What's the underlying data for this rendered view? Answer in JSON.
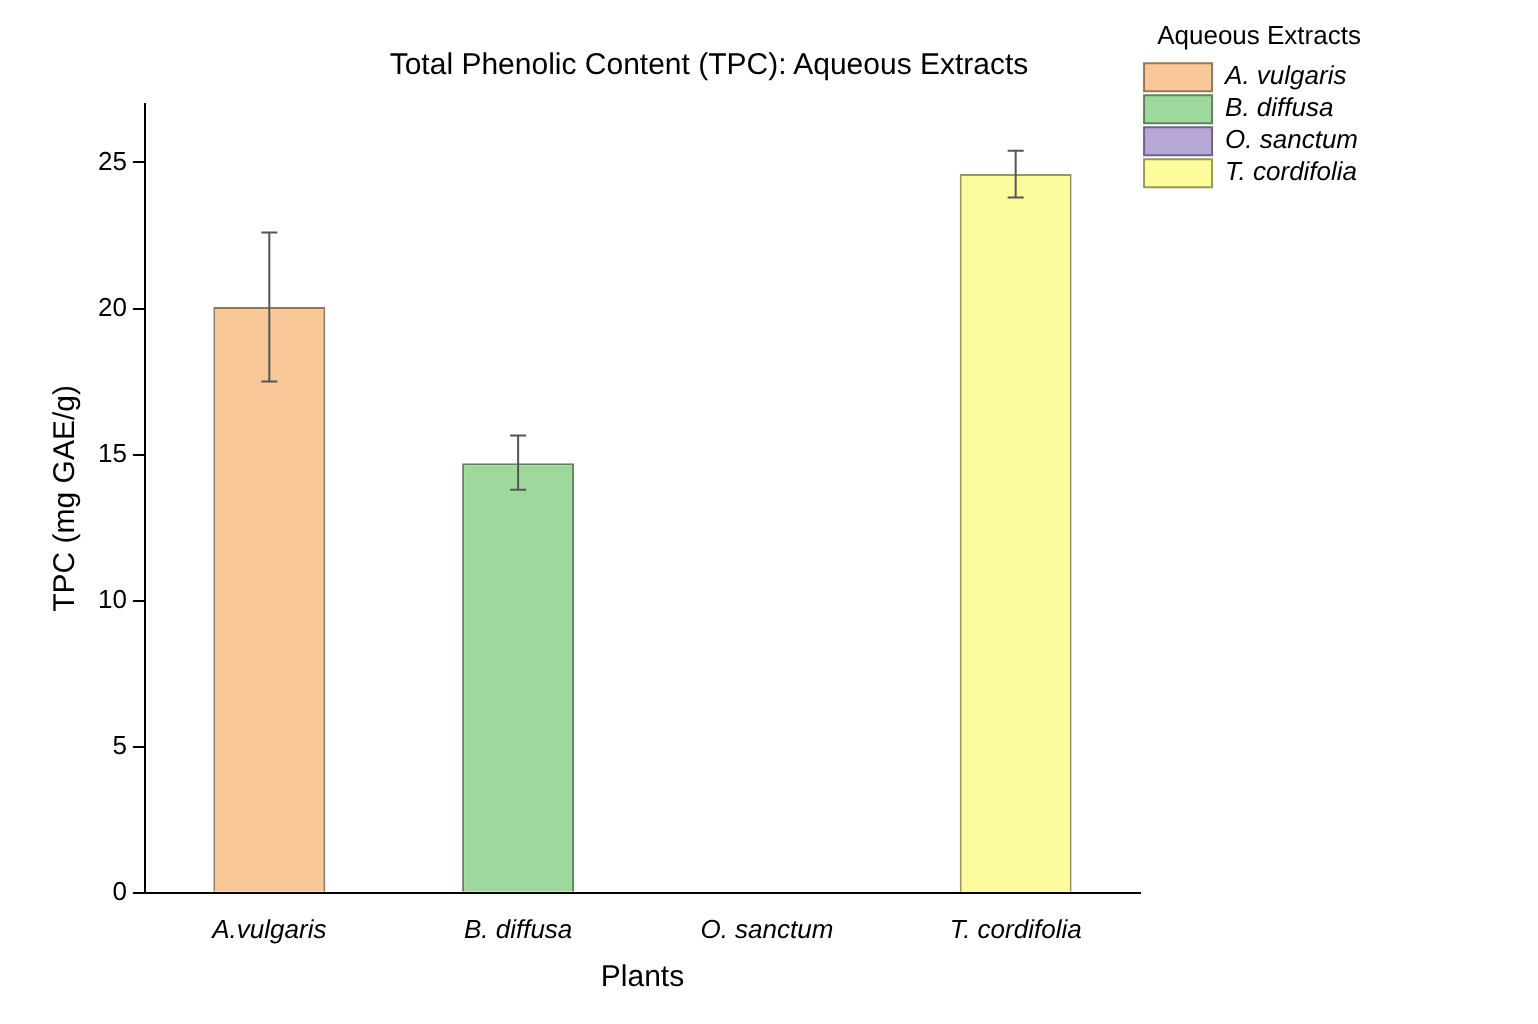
{
  "chart_data": {
    "type": "bar",
    "title": "Total Phenolic Content (TPC): Aqueous Extracts",
    "xlabel": "Plants",
    "ylabel": "TPC (mg GAE/g)",
    "legend_title": "Aqueous Extracts",
    "categories": [
      "A.vulgaris",
      "B. diffusa",
      "O. sanctum",
      "T. cordifolia"
    ],
    "series": [
      {
        "name": "A. vulgaris",
        "color": "#f9c898",
        "values": [
          20.05,
          null,
          null,
          null
        ],
        "errors": [
          [
            17.5,
            22.6
          ],
          null,
          null,
          null
        ]
      },
      {
        "name": "B. diffusa",
        "color": "#9fd89c",
        "values": [
          null,
          14.7,
          null,
          null
        ],
        "errors": [
          null,
          [
            13.8,
            15.65
          ],
          null,
          null
        ]
      },
      {
        "name": "O. sanctum",
        "color": "#b8a8d8",
        "values": [
          null,
          null,
          null,
          null
        ]
      },
      {
        "name": "T. cordifolia",
        "color": "#fdfc9c",
        "values": [
          null,
          null,
          null,
          24.6
        ],
        "errors": [
          null,
          null,
          null,
          [
            23.8,
            25.4
          ]
        ]
      }
    ],
    "ylim": [
      0,
      27
    ],
    "yticks": [
      0,
      5,
      10,
      15,
      20,
      25
    ],
    "grid": false,
    "legend": "top right"
  }
}
